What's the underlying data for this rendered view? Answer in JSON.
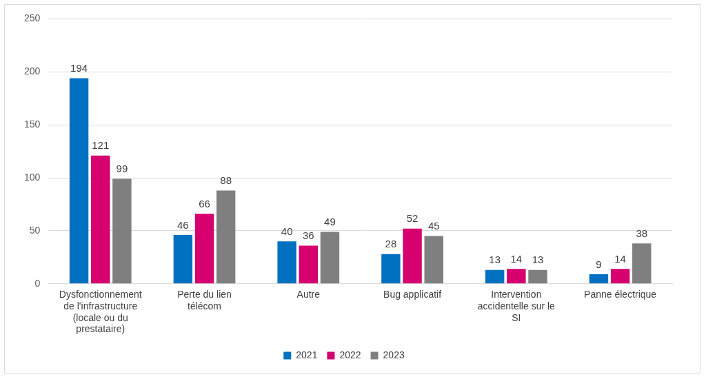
{
  "chart_data": {
    "type": "bar",
    "categories": [
      "Dysfonctionnement de l'infrastructure (locale ou du prestataire)",
      "Perte du lien télécom",
      "Autre",
      "Bug applicatif",
      "Intervention accidentelle sur le SI",
      "Panne électrique"
    ],
    "series": [
      {
        "name": "2021",
        "color": "#0070c0",
        "values": [
          194,
          46,
          40,
          28,
          13,
          9
        ]
      },
      {
        "name": "2022",
        "color": "#d6006f",
        "values": [
          121,
          66,
          36,
          52,
          14,
          14
        ]
      },
      {
        "name": "2023",
        "color": "#7f7f7f",
        "values": [
          99,
          88,
          49,
          45,
          13,
          38
        ]
      }
    ],
    "ylim": [
      0,
      250
    ],
    "yticks": [
      0,
      50,
      100,
      150,
      200,
      250
    ],
    "grid": true,
    "legend": "bottom",
    "data_labels": true
  }
}
